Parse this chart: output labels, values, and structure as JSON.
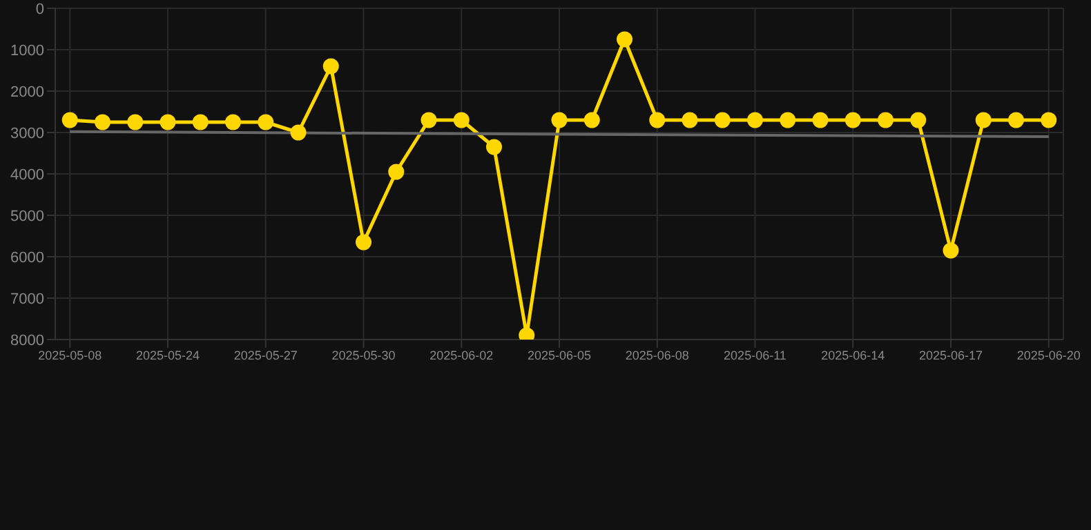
{
  "chart_data": {
    "type": "line",
    "categories": [
      "2025-05-08",
      null,
      null,
      "2025-05-24",
      null,
      null,
      "2025-05-27",
      null,
      null,
      "2025-05-30",
      null,
      null,
      "2025-06-02",
      null,
      null,
      "2025-06-05",
      null,
      null,
      "2025-06-08",
      null,
      null,
      "2025-06-11",
      null,
      null,
      "2025-06-14",
      null,
      null,
      "2025-06-17",
      null,
      null,
      "2025-06-20"
    ],
    "series": [
      {
        "color": "#ffd700",
        "marker": "circle",
        "values": [
          2700,
          2750,
          2750,
          2750,
          2750,
          2750,
          2750,
          3000,
          1400,
          5650,
          3950,
          2700,
          2700,
          3350,
          7900,
          2700,
          2700,
          750,
          2700,
          2700,
          2700,
          2700,
          2700,
          2700,
          2700,
          2700,
          2700,
          5850,
          2700,
          2700,
          2700
        ]
      },
      {
        "type": "line",
        "color": "#666666",
        "marker": "none",
        "values": [
          2980,
          null,
          null,
          null,
          null,
          null,
          null,
          null,
          null,
          null,
          null,
          null,
          null,
          null,
          null,
          null,
          null,
          null,
          null,
          null,
          null,
          null,
          null,
          null,
          null,
          null,
          null,
          null,
          null,
          null,
          3100
        ]
      }
    ],
    "ylim": [
      8000,
      0
    ],
    "yticks": [
      0,
      1000,
      2000,
      3000,
      4000,
      5000,
      6000,
      7000,
      8000
    ],
    "grid": true
  }
}
